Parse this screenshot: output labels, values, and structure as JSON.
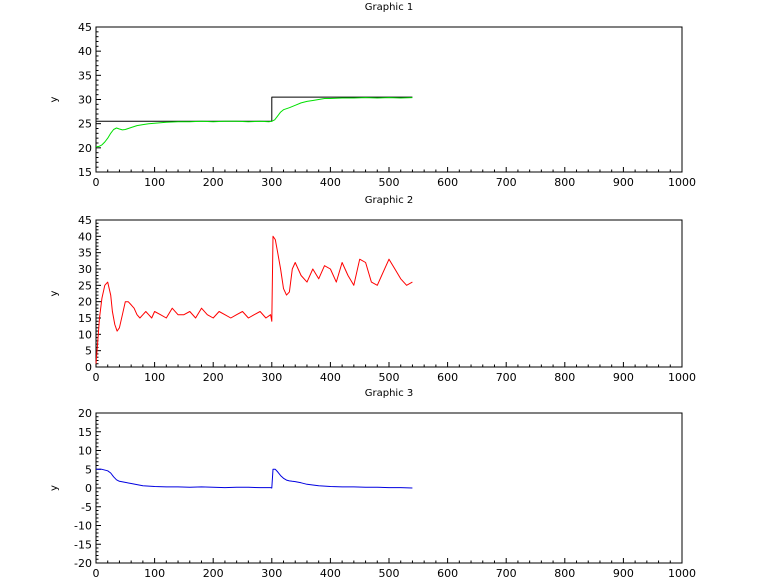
{
  "chart_data": [
    {
      "type": "line",
      "title": "Graphic 1",
      "xlabel": "",
      "ylabel": "y",
      "xlim": [
        0,
        1000
      ],
      "ylim": [
        15,
        45
      ],
      "xticks": [
        0,
        100,
        200,
        300,
        400,
        500,
        600,
        700,
        800,
        900,
        1000
      ],
      "yticks": [
        15,
        20,
        25,
        30,
        35,
        40,
        45
      ],
      "grid": false,
      "series": [
        {
          "color": "#000000",
          "step": true,
          "x": [
            0,
            300,
            300,
            540
          ],
          "y": [
            25.5,
            25.5,
            30.5,
            30.5
          ]
        },
        {
          "color": "#00e000",
          "x": [
            0,
            5,
            10,
            15,
            20,
            25,
            30,
            35,
            40,
            45,
            50,
            60,
            70,
            80,
            90,
            100,
            110,
            120,
            140,
            160,
            180,
            200,
            220,
            240,
            260,
            280,
            295,
            300,
            305,
            310,
            315,
            320,
            325,
            330,
            340,
            350,
            360,
            370,
            380,
            390,
            400,
            420,
            440,
            460,
            480,
            500,
            520,
            540
          ],
          "y": [
            20.2,
            20.3,
            20.6,
            21.2,
            22.0,
            23.0,
            23.8,
            24.1,
            23.9,
            23.7,
            23.8,
            24.2,
            24.6,
            24.8,
            25.0,
            25.1,
            25.2,
            25.3,
            25.4,
            25.4,
            25.5,
            25.4,
            25.5,
            25.5,
            25.4,
            25.5,
            25.4,
            25.5,
            25.8,
            26.6,
            27.4,
            27.9,
            28.1,
            28.3,
            28.8,
            29.3,
            29.6,
            29.8,
            30.0,
            30.2,
            30.2,
            30.3,
            30.3,
            30.4,
            30.3,
            30.4,
            30.3,
            30.4
          ]
        }
      ]
    },
    {
      "type": "line",
      "title": "Graphic 2",
      "xlabel": "",
      "ylabel": "y",
      "xlim": [
        0,
        1000
      ],
      "ylim": [
        0,
        45
      ],
      "xticks": [
        0,
        100,
        200,
        300,
        400,
        500,
        600,
        700,
        800,
        900,
        1000
      ],
      "yticks": [
        0,
        5,
        10,
        15,
        20,
        25,
        30,
        35,
        40,
        45
      ],
      "grid": false,
      "series": [
        {
          "color": "#ff0000",
          "x": [
            0,
            3,
            6,
            10,
            15,
            20,
            25,
            28,
            32,
            36,
            40,
            45,
            50,
            55,
            60,
            65,
            70,
            75,
            80,
            85,
            90,
            95,
            100,
            110,
            120,
            130,
            140,
            150,
            160,
            170,
            180,
            190,
            200,
            210,
            220,
            230,
            240,
            250,
            260,
            270,
            280,
            290,
            298,
            300,
            302,
            306,
            310,
            315,
            320,
            325,
            330,
            335,
            340,
            350,
            360,
            370,
            380,
            390,
            400,
            410,
            420,
            430,
            440,
            450,
            460,
            470,
            480,
            490,
            500,
            510,
            520,
            530,
            540
          ],
          "y": [
            1,
            8,
            15,
            21,
            25,
            26,
            22,
            17,
            13,
            11,
            12,
            16,
            20,
            20,
            19,
            18,
            16,
            15,
            16,
            17,
            16,
            15,
            17,
            16,
            15,
            18,
            16,
            16,
            17,
            15,
            18,
            16,
            15,
            17,
            16,
            15,
            16,
            17,
            15,
            16,
            17,
            15,
            16,
            14,
            40,
            39,
            35,
            30,
            24,
            22,
            23,
            30,
            32,
            28,
            26,
            30,
            27,
            31,
            30,
            26,
            32,
            28,
            25,
            33,
            32,
            26,
            25,
            29,
            33,
            30,
            27,
            25,
            26
          ]
        }
      ]
    },
    {
      "type": "line",
      "title": "Graphic 3",
      "xlabel": "",
      "ylabel": "y",
      "xlim": [
        0,
        1000
      ],
      "ylim": [
        -20,
        20
      ],
      "xticks": [
        0,
        100,
        200,
        300,
        400,
        500,
        600,
        700,
        800,
        900,
        1000
      ],
      "yticks": [
        -20,
        -15,
        -10,
        -5,
        0,
        5,
        10,
        15,
        20
      ],
      "grid": false,
      "series": [
        {
          "color": "#0000e0",
          "x": [
            0,
            10,
            20,
            25,
            30,
            35,
            40,
            50,
            60,
            70,
            80,
            90,
            100,
            120,
            140,
            160,
            180,
            200,
            220,
            240,
            260,
            280,
            298,
            300,
            302,
            306,
            310,
            315,
            320,
            325,
            330,
            335,
            340,
            350,
            360,
            370,
            380,
            400,
            420,
            440,
            460,
            480,
            500,
            520,
            540
          ],
          "y": [
            5,
            5,
            4.6,
            4,
            3,
            2.2,
            1.8,
            1.5,
            1.2,
            0.9,
            0.6,
            0.5,
            0.4,
            0.3,
            0.3,
            0.2,
            0.3,
            0.2,
            0.1,
            0.2,
            0.2,
            0.1,
            0.1,
            0,
            5,
            5,
            4.3,
            3.3,
            2.6,
            2.1,
            1.9,
            1.8,
            1.7,
            1.4,
            1.0,
            0.8,
            0.6,
            0.4,
            0.3,
            0.3,
            0.2,
            0.2,
            0.1,
            0.1,
            0
          ]
        }
      ]
    }
  ]
}
